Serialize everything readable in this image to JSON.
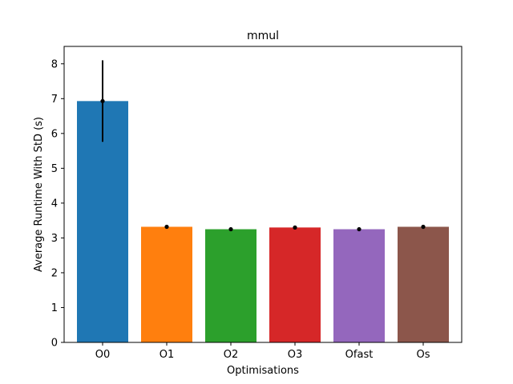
{
  "chart_data": {
    "type": "bar",
    "title": "mmul",
    "xlabel": "Optimisations",
    "ylabel": "Average Runtime With StD (s)",
    "categories": [
      "O0",
      "O1",
      "O2",
      "O3",
      "Ofast",
      "Os"
    ],
    "values": [
      6.93,
      3.32,
      3.25,
      3.3,
      3.25,
      3.32
    ],
    "errors": [
      1.17,
      0.02,
      0.02,
      0.05,
      0.02,
      0.02
    ],
    "colors": [
      "#1f77b4",
      "#ff7f0e",
      "#2ca02c",
      "#d62728",
      "#9467bd",
      "#8c564b"
    ],
    "ylim": [
      0,
      8.5
    ],
    "yticks": [
      0,
      1,
      2,
      3,
      4,
      5,
      6,
      7,
      8
    ],
    "grid": false,
    "legend": "none"
  }
}
